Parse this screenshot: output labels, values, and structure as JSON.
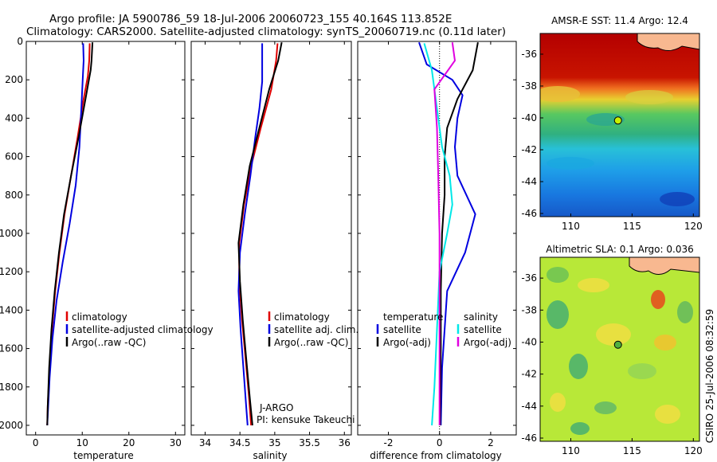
{
  "header": {
    "line1": "Argo profile: JA 5900786_59 18-Jul-2006 20060723_155 40.164S 113.852E",
    "line2": "Climatology: CARS2000. Satellite-adjusted climatology: synTS_20060719.nc (0.11d later)"
  },
  "side_label": "CSIRO 25-Jul-2006 08:32:59",
  "colors": {
    "red": "#e00000",
    "blue": "#0000e0",
    "black": "#000000",
    "cyan": "#00e8e8",
    "magenta": "#e000e0",
    "land": "#f8b890"
  },
  "chart_data": [
    {
      "type": "line",
      "id": "temperature",
      "xlabel": "temperature",
      "xlim": [
        -2,
        32
      ],
      "ylim": [
        2050,
        0
      ],
      "xticks": [
        0,
        10,
        20,
        30
      ],
      "yticks": [
        0,
        200,
        400,
        600,
        800,
        1000,
        1200,
        1400,
        1600,
        1800,
        2000
      ],
      "legend": [
        "climatology",
        "satellite-adjusted climatology",
        "Argo(..raw -QC)"
      ],
      "annotations": [],
      "series": [
        {
          "name": "climatology",
          "color": "red",
          "points": [
            [
              11.6,
              10
            ],
            [
              11.5,
              100
            ],
            [
              11.2,
              180
            ],
            [
              10.3,
              300
            ],
            [
              9.0,
              500
            ],
            [
              7.6,
              700
            ],
            [
              6.2,
              900
            ],
            [
              5.1,
              1100
            ],
            [
              4.2,
              1300
            ],
            [
              3.5,
              1500
            ],
            [
              3.0,
              1700
            ],
            [
              2.6,
              1900
            ],
            [
              2.5,
              2000
            ]
          ]
        },
        {
          "name": "satellite-adjusted climatology",
          "color": "blue",
          "points": [
            [
              10.2,
              10
            ],
            [
              10.3,
              100
            ],
            [
              10.1,
              200
            ],
            [
              9.8,
              350
            ],
            [
              9.4,
              550
            ],
            [
              8.6,
              750
            ],
            [
              7.3,
              950
            ],
            [
              5.8,
              1150
            ],
            [
              4.5,
              1350
            ],
            [
              3.6,
              1550
            ],
            [
              3.0,
              1750
            ],
            [
              2.6,
              1950
            ],
            [
              2.5,
              2000
            ]
          ]
        },
        {
          "name": "Argo(..raw -QC)",
          "color": "black",
          "points": [
            [
              12.2,
              5
            ],
            [
              12.0,
              100
            ],
            [
              11.8,
              150
            ],
            [
              10.7,
              300
            ],
            [
              9.2,
              500
            ],
            [
              7.6,
              700
            ],
            [
              6.1,
              900
            ],
            [
              5.0,
              1100
            ],
            [
              4.1,
              1300
            ],
            [
              3.4,
              1500
            ],
            [
              2.9,
              1700
            ],
            [
              2.6,
              1900
            ],
            [
              2.5,
              2000
            ]
          ]
        }
      ]
    },
    {
      "type": "line",
      "id": "salinity",
      "xlabel": "salinity",
      "xlim": [
        33.8,
        36.1
      ],
      "ylim": [
        2050,
        0
      ],
      "xticks": [
        34,
        34.5,
        35,
        35.5,
        36
      ],
      "yticks": [
        0,
        200,
        400,
        600,
        800,
        1000,
        1200,
        1400,
        1600,
        1800,
        2000
      ],
      "legend": [
        "climatology",
        "satellite adj. clim.",
        "Argo(..raw -QC)"
      ],
      "annotations": [
        "J-ARGO",
        "PI: kensuke Takeuchi"
      ],
      "series": [
        {
          "name": "climatology",
          "color": "red",
          "points": [
            [
              35.04,
              10
            ],
            [
              35.02,
              100
            ],
            [
              34.95,
              250
            ],
            [
              34.8,
              450
            ],
            [
              34.66,
              650
            ],
            [
              34.56,
              850
            ],
            [
              34.49,
              1050
            ],
            [
              34.49,
              1250
            ],
            [
              34.53,
              1450
            ],
            [
              34.58,
              1650
            ],
            [
              34.63,
              1850
            ],
            [
              34.66,
              2000
            ]
          ]
        },
        {
          "name": "satellite adj. clim.",
          "color": "blue",
          "points": [
            [
              34.82,
              10
            ],
            [
              34.82,
              210
            ],
            [
              34.78,
              350
            ],
            [
              34.72,
              500
            ],
            [
              34.65,
              700
            ],
            [
              34.57,
              900
            ],
            [
              34.5,
              1100
            ],
            [
              34.48,
              1300
            ],
            [
              34.51,
              1500
            ],
            [
              34.55,
              1700
            ],
            [
              34.59,
              1900
            ],
            [
              34.61,
              2000
            ]
          ]
        },
        {
          "name": "Argo(..raw -QC)",
          "color": "black",
          "points": [
            [
              35.1,
              5
            ],
            [
              35.05,
              100
            ],
            [
              34.92,
              250
            ],
            [
              34.78,
              450
            ],
            [
              34.64,
              650
            ],
            [
              34.55,
              850
            ],
            [
              34.48,
              1050
            ],
            [
              34.5,
              1250
            ],
            [
              34.54,
              1450
            ],
            [
              34.59,
              1650
            ],
            [
              34.64,
              1850
            ],
            [
              34.68,
              2000
            ]
          ]
        }
      ]
    },
    {
      "type": "line",
      "id": "difference",
      "xlabel": "difference from climatology",
      "xlim": [
        -3.2,
        3.0
      ],
      "ylim": [
        2050,
        0
      ],
      "xticks": [
        -2,
        0,
        2
      ],
      "yticks": [
        0,
        200,
        400,
        600,
        800,
        1000,
        1200,
        1400,
        1600,
        1800,
        2000
      ],
      "legend_titles": [
        "temperature",
        "salinity"
      ],
      "legend": [
        "satellite",
        "Argo(-adj)",
        "satellite",
        "Argo(-adj)"
      ],
      "annotations": [],
      "series": [
        {
          "name": "temperature satellite",
          "color": "blue",
          "points": [
            [
              -0.8,
              5
            ],
            [
              -0.5,
              120
            ],
            [
              0.5,
              200
            ],
            [
              0.9,
              280
            ],
            [
              0.7,
              400
            ],
            [
              0.6,
              550
            ],
            [
              0.7,
              700
            ],
            [
              1.4,
              900
            ],
            [
              1.0,
              1100
            ],
            [
              0.3,
              1300
            ],
            [
              0.2,
              1500
            ],
            [
              0.1,
              1700
            ],
            [
              0.05,
              2000
            ]
          ]
        },
        {
          "name": "temperature Argo(-adj)",
          "color": "black",
          "points": [
            [
              1.5,
              5
            ],
            [
              1.3,
              150
            ],
            [
              0.7,
              300
            ],
            [
              0.3,
              450
            ],
            [
              0.2,
              600
            ],
            [
              0.2,
              800
            ],
            [
              0.1,
              1000
            ],
            [
              0.05,
              1300
            ],
            [
              0.05,
              1600
            ],
            [
              0.02,
              2000
            ]
          ]
        },
        {
          "name": "salinity satellite",
          "color": "cyan",
          "points": [
            [
              -0.6,
              10
            ],
            [
              -0.3,
              150
            ],
            [
              -0.1,
              350
            ],
            [
              0.1,
              550
            ],
            [
              0.4,
              700
            ],
            [
              0.5,
              850
            ],
            [
              0.3,
              1000
            ],
            [
              0.0,
              1200
            ],
            [
              -0.1,
              1500
            ],
            [
              -0.2,
              1800
            ],
            [
              -0.3,
              2000
            ]
          ]
        },
        {
          "name": "salinity Argo(-adj)",
          "color": "magenta",
          "points": [
            [
              0.5,
              5
            ],
            [
              0.6,
              100
            ],
            [
              -0.2,
              250
            ],
            [
              -0.1,
              450
            ],
            [
              -0.05,
              700
            ],
            [
              0.0,
              1000
            ],
            [
              0.0,
              1300
            ],
            [
              0.0,
              1700
            ],
            [
              0.0,
              2000
            ]
          ]
        }
      ]
    },
    {
      "type": "heatmap",
      "id": "sst_map",
      "title": "AMSR-E SST: 11.4 Argo: 12.4",
      "xlim": [
        107.5,
        120.5
      ],
      "ylim": [
        -46.2,
        -34.7
      ],
      "xticks": [
        110,
        115,
        120
      ],
      "yticks": [
        -36,
        -38,
        -40,
        -42,
        -44,
        -46
      ],
      "marker": {
        "lon": 113.852,
        "lat": -40.164
      }
    },
    {
      "type": "heatmap",
      "id": "sla_map",
      "title": "Altimetric SLA: 0.1 Argo: 0.036",
      "xlim": [
        107.5,
        120.5
      ],
      "ylim": [
        -46.2,
        -34.7
      ],
      "xticks": [
        110,
        115,
        120
      ],
      "yticks": [
        -36,
        -38,
        -40,
        -42,
        -44,
        -46
      ],
      "marker": {
        "lon": 113.852,
        "lat": -40.164
      }
    }
  ]
}
